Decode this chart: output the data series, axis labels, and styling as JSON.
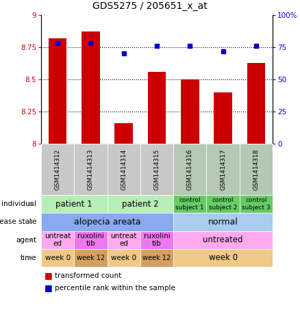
{
  "title": "GDS5275 / 205651_x_at",
  "samples": [
    "GSM1414312",
    "GSM1414313",
    "GSM1414314",
    "GSM1414315",
    "GSM1414316",
    "GSM1414317",
    "GSM1414318"
  ],
  "bar_values": [
    8.82,
    8.87,
    8.16,
    8.56,
    8.5,
    8.4,
    8.63
  ],
  "dot_values": [
    78,
    78,
    70,
    76,
    76,
    72,
    76
  ],
  "bar_color": "#cc0000",
  "dot_color": "#0000cc",
  "ylim_left": [
    8.0,
    9.0
  ],
  "ylim_right": [
    0,
    100
  ],
  "yticks_left": [
    8.0,
    8.25,
    8.5,
    8.75,
    9.0
  ],
  "yticks_right": [
    0,
    25,
    50,
    75,
    100
  ],
  "ytick_labels_left": [
    "8",
    "8.25",
    "8.5",
    "8.75",
    "9"
  ],
  "ytick_labels_right": [
    "0",
    "25",
    "50",
    "75",
    "100%"
  ],
  "grid_yticks": [
    8.25,
    8.5,
    8.75
  ],
  "row_labels": [
    "individual",
    "disease state",
    "agent",
    "time"
  ],
  "individual_data": [
    {
      "label": "patient 1",
      "cols": [
        0,
        1
      ],
      "color": "#b8edb8",
      "fontsize": 8.5
    },
    {
      "label": "patient 2",
      "cols": [
        2,
        3
      ],
      "color": "#b8edb8",
      "fontsize": 8.5
    },
    {
      "label": "control\nsubject 1",
      "cols": [
        4,
        4
      ],
      "color": "#66cc66",
      "fontsize": 6.5
    },
    {
      "label": "control\nsubject 2",
      "cols": [
        5,
        5
      ],
      "color": "#66cc66",
      "fontsize": 6.5
    },
    {
      "label": "control\nsubject 3",
      "cols": [
        6,
        6
      ],
      "color": "#66cc66",
      "fontsize": 6.5
    }
  ],
  "disease_data": [
    {
      "label": "alopecia areata",
      "cols": [
        0,
        3
      ],
      "color": "#88aaee",
      "fontsize": 9
    },
    {
      "label": "normal",
      "cols": [
        4,
        6
      ],
      "color": "#aaccee",
      "fontsize": 9
    }
  ],
  "agent_data": [
    {
      "label": "untreat\ned",
      "cols": [
        0,
        0
      ],
      "color": "#ffaaee",
      "fontsize": 7.5
    },
    {
      "label": "ruxolini\ntib",
      "cols": [
        1,
        1
      ],
      "color": "#ee77ee",
      "fontsize": 7.5
    },
    {
      "label": "untreat\ned",
      "cols": [
        2,
        2
      ],
      "color": "#ffaaee",
      "fontsize": 7.5
    },
    {
      "label": "ruxolini\ntib",
      "cols": [
        3,
        3
      ],
      "color": "#ee77ee",
      "fontsize": 7.5
    },
    {
      "label": "untreated",
      "cols": [
        4,
        6
      ],
      "color": "#ffaaee",
      "fontsize": 8.5
    }
  ],
  "time_data": [
    {
      "label": "week 0",
      "cols": [
        0,
        0
      ],
      "color": "#f0c888",
      "fontsize": 7.5
    },
    {
      "label": "week 12",
      "cols": [
        1,
        1
      ],
      "color": "#d4a060",
      "fontsize": 7
    },
    {
      "label": "week 0",
      "cols": [
        2,
        2
      ],
      "color": "#f0c888",
      "fontsize": 7.5
    },
    {
      "label": "week 12",
      "cols": [
        3,
        3
      ],
      "color": "#d4a060",
      "fontsize": 7
    },
    {
      "label": "week 0",
      "cols": [
        4,
        6
      ],
      "color": "#f0c888",
      "fontsize": 8.5
    }
  ],
  "n_cols": 7,
  "sample_colors_left": [
    "#c8c8c8",
    "#c8c8c8",
    "#c8c8c8",
    "#c8c8c8"
  ],
  "sample_colors_right": [
    "#b4c8b4",
    "#b4c8b4",
    "#b4c8b4"
  ]
}
